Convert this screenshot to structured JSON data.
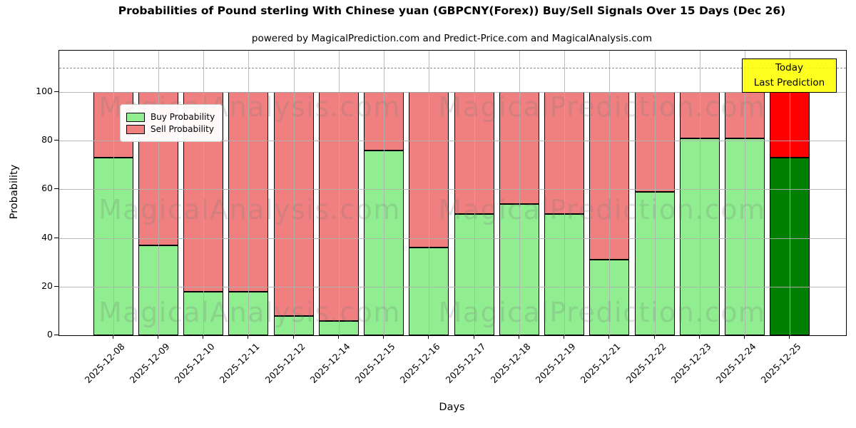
{
  "header": {
    "title": "Probabilities of Pound sterling With Chinese yuan (GBPCNY(Forex)) Buy/Sell Signals Over 15 Days (Dec 26)",
    "subtitle": "powered by MagicalPrediction.com and Predict-Price.com and MagicalAnalysis.com"
  },
  "axes": {
    "ylabel": "Probability",
    "xlabel": "Days",
    "ytick_values": [
      0,
      20,
      40,
      60,
      80,
      100
    ]
  },
  "legend": {
    "items": [
      {
        "label": "Buy Probability",
        "color": "#90EE90"
      },
      {
        "label": "Sell Probability",
        "color": "#F08080"
      }
    ]
  },
  "annotation_box": {
    "line1": "Today",
    "line2": "Last Prediction",
    "bg_color": "#FFFF00"
  },
  "watermarks": {
    "left_text": "MagicalAnalysis.com",
    "right_text": "MagicalPrediction.com"
  },
  "chart_data": {
    "type": "bar",
    "stacked": true,
    "title": "Probabilities of Pound sterling With Chinese yuan (GBPCNY(Forex)) Buy/Sell Signals Over 15 Days (Dec 26)",
    "xlabel": "Days",
    "ylabel": "Probability",
    "ylim": [
      0,
      117
    ],
    "grid": true,
    "legend_position": "upper left",
    "dashed_line_y": 110,
    "categories": [
      "2025-12-08",
      "2025-12-09",
      "2025-12-10",
      "2025-12-11",
      "2025-12-12",
      "2025-12-14",
      "2025-12-15",
      "2025-12-16",
      "2025-12-17",
      "2025-12-18",
      "2025-12-19",
      "2025-12-21",
      "2025-12-22",
      "2025-12-23",
      "2025-12-24",
      "2025-12-25"
    ],
    "series": [
      {
        "name": "Buy Probability",
        "color": "#90EE90",
        "values": [
          73,
          37,
          18,
          18,
          8,
          6,
          76,
          36,
          50,
          54,
          50,
          31,
          59,
          81,
          81,
          73
        ]
      },
      {
        "name": "Sell Probability",
        "color": "#F08080",
        "values": [
          27,
          63,
          82,
          82,
          92,
          94,
          24,
          64,
          50,
          46,
          50,
          69,
          41,
          19,
          19,
          27
        ]
      }
    ],
    "highlight_last_bar": {
      "buy_color": "#008000",
      "sell_color": "#FF0000"
    }
  }
}
